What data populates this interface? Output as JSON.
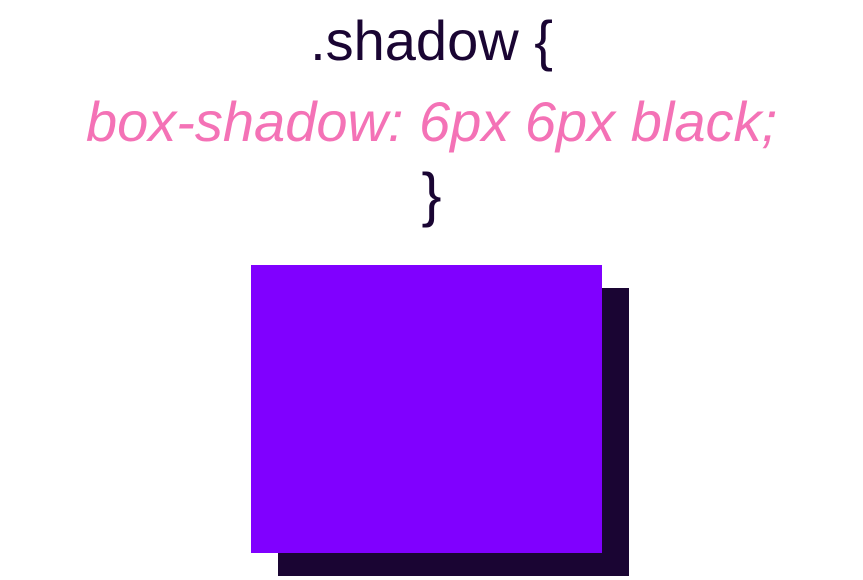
{
  "code": {
    "selector": ".shadow {",
    "declaration": "box-shadow: 6px 6px black;",
    "closing_brace": "}"
  },
  "colors": {
    "selector_text": "#1a0533",
    "declaration_text": "#f472b6",
    "box_fill": "#8000ff",
    "shadow_fill": "#1a0533",
    "background": "#ffffff"
  }
}
